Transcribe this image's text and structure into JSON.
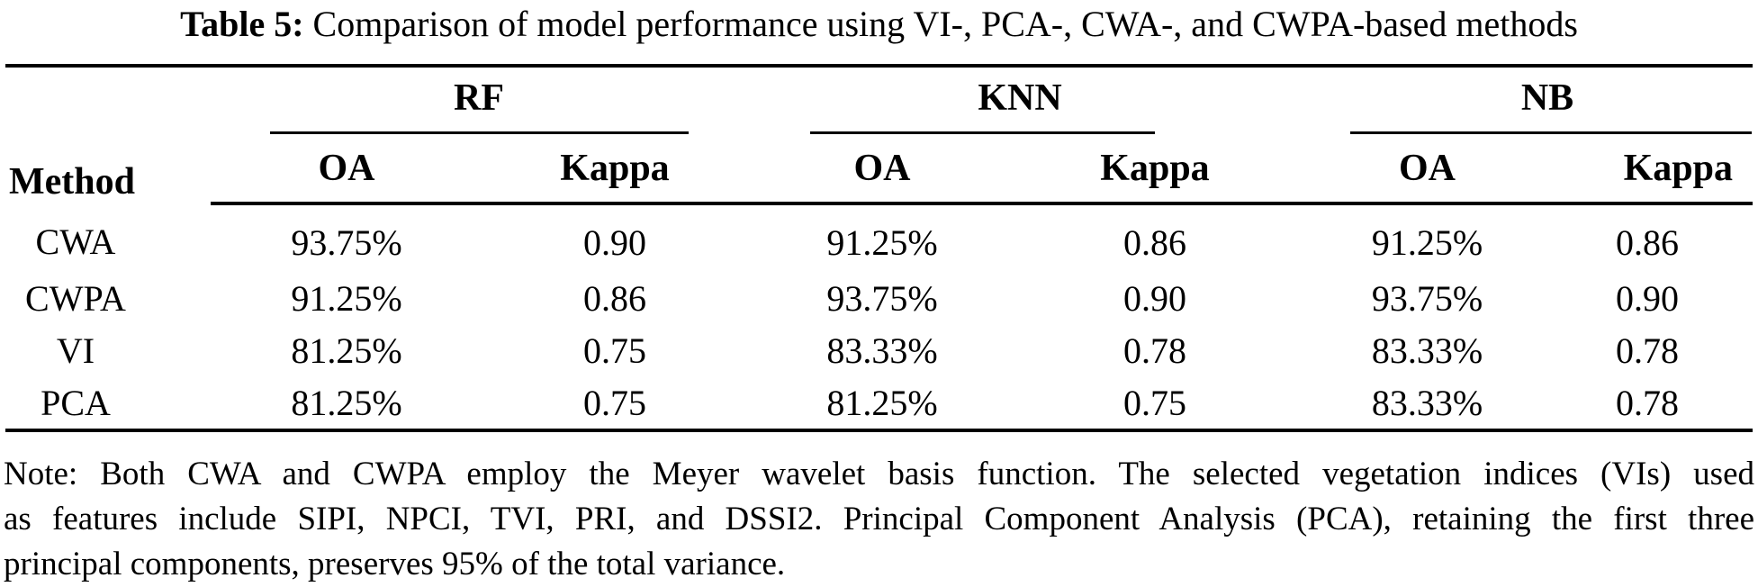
{
  "title": {
    "label": "Table 5:",
    "text": "Comparison of model performance using VI-, PCA-, CWA-, and CWPA-based methods"
  },
  "table": {
    "method_header": "Method",
    "groups": [
      {
        "label": "RF"
      },
      {
        "label": "KNN"
      },
      {
        "label": "NB"
      }
    ],
    "sub_headers": {
      "oa": "OA",
      "kappa": "Kappa"
    },
    "rows": [
      {
        "method": "CWA",
        "rf_oa": "93.75%",
        "rf_kappa": "0.90",
        "knn_oa": "91.25%",
        "knn_kappa": "0.86",
        "nb_oa": "91.25%",
        "nb_kappa": "0.86"
      },
      {
        "method": "CWPA",
        "rf_oa": "91.25%",
        "rf_kappa": "0.86",
        "knn_oa": "93.75%",
        "knn_kappa": "0.90",
        "nb_oa": "93.75%",
        "nb_kappa": "0.90"
      },
      {
        "method": "VI",
        "rf_oa": "81.25%",
        "rf_kappa": "0.75",
        "knn_oa": "83.33%",
        "knn_kappa": "0.78",
        "nb_oa": "83.33%",
        "nb_kappa": "0.78"
      },
      {
        "method": "PCA",
        "rf_oa": "81.25%",
        "rf_kappa": "0.75",
        "knn_oa": "81.25%",
        "knn_kappa": "0.75",
        "nb_oa": "83.33%",
        "nb_kappa": "0.78"
      }
    ]
  },
  "note": {
    "lines": [
      "Note: Both CWA and CWPA employ the Meyer wavelet basis function. The selected vegetation indices (VIs) used",
      "as features include SIPI, NPCI, TVI, PRI, and DSSI2. Principal Component Analysis (PCA), retaining the first three",
      "principal components, preserves 95% of the total variance."
    ]
  }
}
